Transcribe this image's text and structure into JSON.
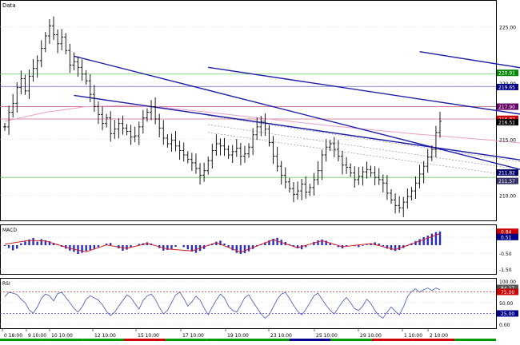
{
  "colors": {
    "frame": "#000000",
    "grid": "#c0c0c0",
    "price_bar": "#000000",
    "channel": "#1f1fa8",
    "ma_pink": "#e8a0c8",
    "level_green": "#66cc66",
    "level_pink": "#cc6688",
    "level_blue": "#6666cc",
    "macd_hist": "#2a2acc",
    "macd_signal": "#cc2222",
    "rsi_line": "#5566bb",
    "rsi_level": "#cc4444",
    "rsi_level_low": "#4444cc",
    "tag_green": "#008800",
    "tag_blue": "#000088",
    "tag_purple": "#660066",
    "tag_red": "#cc0000",
    "tag_black": "#000000",
    "tag_darkblue": "#000066",
    "tag_slate": "#333366",
    "tag_gray": "#555555"
  },
  "chart_data": [
    {
      "type": "ohlc",
      "title": "Data",
      "ylim": [
        208.2,
        226.4
      ],
      "y_ticks": [
        "225.00",
        "220.00",
        "215.00",
        "210.00"
      ],
      "price_tags": [
        "220.91",
        "219.65",
        "217.90",
        "216.82",
        "216.51",
        "211.82",
        "211.57"
      ],
      "tag_values": [
        220.91,
        219.65,
        217.9,
        216.82,
        216.51,
        211.82,
        211.57
      ],
      "horizontal_levels": [
        220.8,
        219.7,
        217.9,
        216.8,
        211.6
      ],
      "channel_lines": [
        {
          "x": [
            102,
            190
          ],
          "y": [
            222.8,
            217.7
          ]
        },
        {
          "x": [
            17,
            170
          ],
          "y": [
            218.9,
            210.9
          ]
        },
        {
          "x": [
            17,
            166
          ],
          "y": [
            222.4,
            208.7
          ]
        },
        {
          "x": [
            50,
            190
          ],
          "y": [
            221.4,
            213.8
          ]
        }
      ],
      "regression_lines": [
        {
          "x": [
            50,
            190
          ],
          "y": [
            217.1,
            209.6
          ]
        },
        {
          "x": [
            50,
            190
          ],
          "y": [
            216.3,
            209.0
          ]
        },
        {
          "x": [
            50,
            190
          ],
          "y": [
            215.6,
            208.4
          ]
        }
      ],
      "moving_average": [
        [
          0,
          216.6
        ],
        [
          10,
          217.4
        ],
        [
          20,
          217.9
        ],
        [
          30,
          218.0
        ],
        [
          40,
          217.8
        ],
        [
          60,
          217.0
        ],
        [
          80,
          216.2
        ],
        [
          100,
          215.5
        ],
        [
          120,
          214.9
        ],
        [
          140,
          214.2
        ],
        [
          150,
          213.6
        ],
        [
          158,
          213.0
        ],
        [
          166,
          212.8
        ],
        [
          175,
          212.6
        ]
      ],
      "close": [
        216.1,
        217.4,
        218.2,
        219.6,
        220.4,
        219.3,
        220.6,
        221.3,
        222.0,
        223.1,
        224.2,
        225.1,
        224.3,
        223.5,
        224.1,
        222.9,
        221.6,
        221.9,
        221.4,
        220.8,
        220.2,
        219.0,
        217.9,
        217.2,
        216.4,
        216.9,
        215.5,
        215.9,
        216.4,
        216.0,
        215.7,
        215.2,
        215.3,
        216.1,
        216.9,
        217.4,
        217.9,
        216.8,
        216.0,
        215.1,
        214.6,
        214.9,
        214.4,
        214.0,
        213.6,
        213.2,
        212.9,
        212.4,
        211.8,
        212.2,
        213.1,
        214.0,
        214.6,
        214.4,
        214.1,
        213.6,
        213.9,
        214.2,
        213.5,
        213.7,
        214.3,
        215.4,
        216.1,
        216.6,
        215.9,
        214.7,
        213.5,
        212.6,
        211.8,
        211.2,
        210.6,
        210.1,
        210.4,
        211.0,
        210.3,
        210.7,
        211.4,
        212.2,
        213.6,
        214.3,
        214.6,
        214.1,
        213.5,
        212.7,
        212.5,
        212.0,
        211.4,
        211.7,
        212.1,
        212.3,
        212.0,
        211.6,
        211.4,
        211.1,
        210.2,
        209.6,
        209.1,
        208.9,
        209.4,
        209.9,
        210.4,
        211.1,
        211.9,
        212.6,
        213.4,
        214.1,
        215.6,
        216.6
      ],
      "x_tick_labels": [
        "0 18:00",
        "9 10:00",
        "10 10:00",
        "12 10:00",
        "15 10:00",
        "17 10:00",
        "19 10:00",
        "23 10:00",
        "25 10:00",
        "29 10:00",
        "1 10:00",
        "2 10:00"
      ]
    },
    {
      "type": "bar",
      "title": "MACD",
      "ylim": [
        -1.7,
        1.1
      ],
      "y_ticks": [
        "0.50",
        "-0.50",
        "-1.50"
      ],
      "price_tags": [
        "0.84",
        "0.51"
      ],
      "tag_values": [
        0.84,
        0.51
      ],
      "values": [
        -0.05,
        -0.18,
        -0.32,
        -0.22,
        0.12,
        0.28,
        0.36,
        0.45,
        0.22,
        0.38,
        0.3,
        0.24,
        0.14,
        0.06,
        -0.1,
        -0.22,
        -0.34,
        -0.42,
        -0.55,
        -0.48,
        -0.36,
        -0.3,
        -0.24,
        -0.12,
        0.0,
        0.1,
        0.14,
        0.0,
        -0.2,
        -0.35,
        -0.28,
        -0.14,
        0.0,
        0.08,
        0.12,
        0.18,
        0.1,
        0.0,
        -0.18,
        -0.34,
        -0.3,
        -0.24,
        -0.1,
        0.0,
        -0.12,
        -0.26,
        -0.4,
        -0.48,
        -0.36,
        -0.24,
        -0.05,
        0.1,
        0.22,
        0.28,
        0.1,
        -0.12,
        -0.32,
        -0.48,
        -0.55,
        -0.5,
        -0.38,
        -0.24,
        -0.08,
        0.06,
        0.18,
        0.3,
        0.4,
        0.46,
        0.34,
        0.2,
        0.06,
        -0.1,
        -0.2,
        -0.26,
        -0.12,
        0.0,
        0.2,
        0.3,
        0.36,
        0.28,
        0.16,
        0.02,
        -0.12,
        -0.2,
        -0.08,
        0.0,
        -0.06,
        -0.12,
        -0.04,
        0.04,
        0.12,
        0.18,
        0.1,
        -0.06,
        -0.22,
        -0.3,
        -0.36,
        -0.3,
        -0.18,
        -0.06,
        0.12,
        0.26,
        0.38,
        0.5,
        0.6,
        0.72,
        0.82,
        0.86
      ],
      "signal": [
        [
          0,
          0.06
        ],
        [
          6,
          0.3
        ],
        [
          10,
          0.26
        ],
        [
          16,
          -0.2
        ],
        [
          20,
          -0.42
        ],
        [
          25,
          0.02
        ],
        [
          30,
          -0.2
        ],
        [
          35,
          0.12
        ],
        [
          40,
          -0.24
        ],
        [
          46,
          -0.36
        ],
        [
          52,
          0.16
        ],
        [
          58,
          -0.44
        ],
        [
          66,
          0.34
        ],
        [
          72,
          -0.16
        ],
        [
          78,
          0.28
        ],
        [
          83,
          -0.1
        ],
        [
          90,
          0.1
        ],
        [
          96,
          -0.28
        ],
        [
          102,
          0.26
        ],
        [
          107,
          0.72
        ]
      ]
    },
    {
      "type": "line",
      "title": "RSI",
      "ylim": [
        0,
        100
      ],
      "y_ticks": [
        "100.00",
        "50.00",
        "0.00"
      ],
      "price_tags": [
        "84.27",
        "75.00",
        "25.00"
      ],
      "tag_values": [
        84.27,
        75.0,
        25.0
      ],
      "overbought": 75,
      "oversold": 25,
      "values": [
        64,
        74,
        72,
        69,
        58,
        50,
        33,
        26,
        40,
        60,
        70,
        66,
        54,
        71,
        74,
        62,
        50,
        37,
        28,
        40,
        58,
        66,
        61,
        56,
        45,
        30,
        20,
        28,
        42,
        55,
        68,
        62,
        48,
        35,
        55,
        66,
        70,
        58,
        39,
        24,
        32,
        50,
        68,
        74,
        60,
        42,
        52,
        65,
        56,
        38,
        22,
        40,
        56,
        70,
        61,
        42,
        32,
        28,
        44,
        62,
        68,
        52,
        38,
        24,
        14,
        22,
        40,
        58,
        70,
        74,
        60,
        44,
        30,
        22,
        34,
        50,
        66,
        72,
        58,
        44,
        32,
        24,
        38,
        52,
        62,
        50,
        36,
        32,
        42,
        58,
        48,
        32,
        20,
        14,
        28,
        40,
        30,
        22,
        40,
        64,
        76,
        82,
        74,
        80,
        84,
        78,
        84,
        80
      ]
    },
    {
      "type": "timeline_strip",
      "title": "",
      "segments": [
        "#009900",
        "#009900",
        "#009900",
        "#cc0000",
        "#009900",
        "#009900",
        "#009900",
        "#000088",
        "#009900",
        "#cc0000",
        "#cc0000",
        "#009900"
      ]
    }
  ]
}
